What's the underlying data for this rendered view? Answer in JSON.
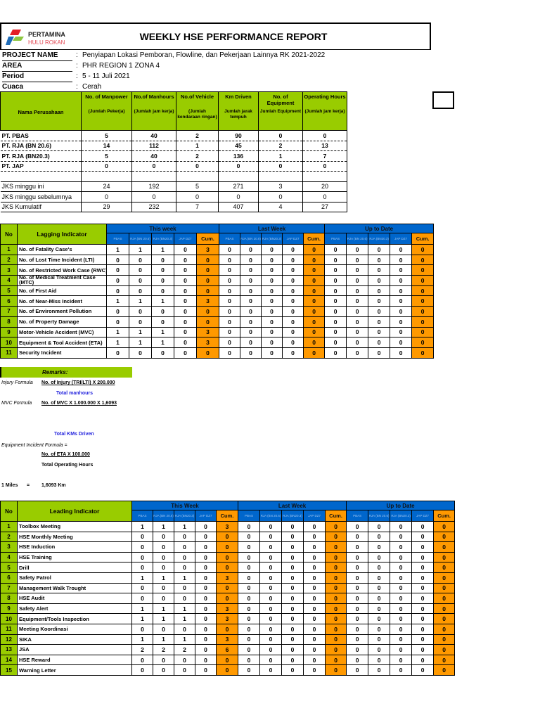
{
  "header": {
    "logo_name": "PERTAMINA",
    "logo_sub": "HULU ROKAN",
    "title": "WEEKLY HSE PERFORMANCE REPORT"
  },
  "info": [
    {
      "label": "PROJECT NAME",
      "value": "Penyiapan Lokasi Pemboran, Flowline, dan Pekerjaan Lainnya RK 2021-2022"
    },
    {
      "label": "AREA",
      "value": "PHR REGION 1 ZONA 4"
    },
    {
      "label": "Period",
      "value": "5 - 11 Juli 2021"
    },
    {
      "label": "Cuaca",
      "value": "Cerah"
    }
  ],
  "colon": ":",
  "summary": {
    "headers": [
      {
        "title": "Nama Perusahaan",
        "sub": ""
      },
      {
        "title": "No. of Manpower",
        "sub": "(Jumlah Pekerja)"
      },
      {
        "title": "No.of Manhours",
        "sub": "(Jumlah jam kerja)"
      },
      {
        "title": "No.of Vehicle",
        "sub": "(Jumlah kendaraan ringan)"
      },
      {
        "title": "Km Driven",
        "sub": "Jumlah jarak tempuh"
      },
      {
        "title": "No. of Equipment",
        "sub": "Jumlah Equipment"
      },
      {
        "title": "Operating Hours",
        "sub": "(Jumlah jam kerja)"
      }
    ],
    "rows": [
      [
        "PT. PBAS",
        "5",
        "40",
        "2",
        "90",
        "0",
        "0"
      ],
      [
        "PT. RJA (BN 20.6)",
        "14",
        "112",
        "1",
        "45",
        "2",
        "13"
      ],
      [
        "PT. RJA (BN20.3)",
        "5",
        "40",
        "2",
        "136",
        "1",
        "7"
      ],
      [
        "PT. JAP",
        "0",
        "0",
        "0",
        "0",
        "0",
        "0"
      ]
    ],
    "totals": [
      [
        "JKS minggu ini",
        "24",
        "192",
        "5",
        "271",
        "3",
        "20"
      ],
      [
        "JKS minggu sebelumnya",
        "0",
        "0",
        "0",
        "0",
        "0",
        "0"
      ],
      [
        "JKS Kumulatif",
        "29",
        "232",
        "7",
        "407",
        "4",
        "27"
      ]
    ]
  },
  "sub_columns": [
    "PBAS",
    "RJA (BN 20.6)",
    "RJA (BN20.3)",
    "JAP DZ7",
    "Cum."
  ],
  "lagging": {
    "no_label": "No",
    "title": "Lagging Indicator",
    "groups": [
      "This week",
      "Last Week",
      "Up to Date"
    ],
    "rows": [
      {
        "no": "1",
        "label": "No. of Fatality Case's",
        "v": [
          1,
          1,
          1,
          0,
          3,
          0,
          0,
          0,
          0,
          0,
          0,
          0,
          0,
          0,
          0
        ]
      },
      {
        "no": "2",
        "label": "No. of Lost Time Incident (LTI)",
        "v": [
          0,
          0,
          0,
          0,
          0,
          0,
          0,
          0,
          0,
          0,
          0,
          0,
          0,
          0,
          0
        ]
      },
      {
        "no": "3",
        "label": "No. of Restricted Work Case (RWC)",
        "v": [
          0,
          0,
          0,
          0,
          0,
          0,
          0,
          0,
          0,
          0,
          0,
          0,
          0,
          0,
          0
        ]
      },
      {
        "no": "4",
        "label": "No. of Medical Treatment Case (MTC)",
        "v": [
          0,
          0,
          0,
          0,
          0,
          0,
          0,
          0,
          0,
          0,
          0,
          0,
          0,
          0,
          0
        ]
      },
      {
        "no": "5",
        "label": "No. of First Aid",
        "v": [
          0,
          0,
          0,
          0,
          0,
          0,
          0,
          0,
          0,
          0,
          0,
          0,
          0,
          0,
          0
        ]
      },
      {
        "no": "6",
        "label": "No. of Near-Miss Incident",
        "v": [
          1,
          1,
          1,
          0,
          3,
          0,
          0,
          0,
          0,
          0,
          0,
          0,
          0,
          0,
          0
        ]
      },
      {
        "no": "7",
        "label": "No. of Environment Pollution",
        "v": [
          0,
          0,
          0,
          0,
          0,
          0,
          0,
          0,
          0,
          0,
          0,
          0,
          0,
          0,
          0
        ]
      },
      {
        "no": "8",
        "label": "No. of Property Damage",
        "v": [
          0,
          0,
          0,
          0,
          0,
          0,
          0,
          0,
          0,
          0,
          0,
          0,
          0,
          0,
          0
        ]
      },
      {
        "no": "9",
        "label": "Motor-Vehicle Accident (MVC)",
        "v": [
          1,
          1,
          1,
          0,
          3,
          0,
          0,
          0,
          0,
          0,
          0,
          0,
          0,
          0,
          0
        ]
      },
      {
        "no": "10",
        "label": "Equipment & Tool Accident (ETA)",
        "v": [
          1,
          1,
          1,
          0,
          3,
          0,
          0,
          0,
          0,
          0,
          0,
          0,
          0,
          0,
          0
        ]
      },
      {
        "no": "11",
        "label": "Security Incident",
        "v": [
          0,
          0,
          0,
          0,
          0,
          0,
          0,
          0,
          0,
          0,
          0,
          0,
          0,
          0,
          0
        ]
      }
    ]
  },
  "remarks": {
    "title": "Remarks:",
    "injury_label": "Injury Formula",
    "injury_num": "No. of Injury (TRI/LTI) X 200.000",
    "injury_den": "Total manhours",
    "mvc_label": "MVC Formula",
    "mvc_num": "No. of MVC X 1.000.000 X 1,6093",
    "mvc_den": "Total KMs Driven",
    "eta_label": "Equipment Incident Formula =",
    "eta_num": "No. of ETA X 100.000",
    "eta_den": "Total Operating Hours",
    "miles_label": "1 Miles",
    "miles_eq": "=",
    "miles_value": "1,6093 Km"
  },
  "leading": {
    "no_label": "No",
    "title": "Leading Indicator",
    "groups": [
      "This Week",
      "Last Week",
      "Up to Date"
    ],
    "rows": [
      {
        "no": "1",
        "label": "Toolbox Meeting",
        "v": [
          1,
          1,
          1,
          0,
          3,
          0,
          0,
          0,
          0,
          0,
          0,
          0,
          0,
          0,
          0
        ]
      },
      {
        "no": "2",
        "label": "HSE Monthly Meeting",
        "v": [
          0,
          0,
          0,
          0,
          0,
          0,
          0,
          0,
          0,
          0,
          0,
          0,
          0,
          0,
          0
        ]
      },
      {
        "no": "3",
        "label": "HSE Induction",
        "v": [
          0,
          0,
          0,
          0,
          0,
          0,
          0,
          0,
          0,
          0,
          0,
          0,
          0,
          0,
          0
        ]
      },
      {
        "no": "4",
        "label": "HSE Training",
        "v": [
          0,
          0,
          0,
          0,
          0,
          0,
          0,
          0,
          0,
          0,
          0,
          0,
          0,
          0,
          0
        ]
      },
      {
        "no": "5",
        "label": "Drill",
        "v": [
          0,
          0,
          0,
          0,
          0,
          0,
          0,
          0,
          0,
          0,
          0,
          0,
          0,
          0,
          0
        ]
      },
      {
        "no": "6",
        "label": "Safety Patrol",
        "v": [
          1,
          1,
          1,
          0,
          3,
          0,
          0,
          0,
          0,
          0,
          0,
          0,
          0,
          0,
          0
        ]
      },
      {
        "no": "7",
        "label": "Management Walk Trought",
        "v": [
          0,
          0,
          0,
          0,
          0,
          0,
          0,
          0,
          0,
          0,
          0,
          0,
          0,
          0,
          0
        ]
      },
      {
        "no": "8",
        "label": "HSE Audit",
        "v": [
          0,
          0,
          0,
          0,
          0,
          0,
          0,
          0,
          0,
          0,
          0,
          0,
          0,
          0,
          0
        ]
      },
      {
        "no": "9",
        "label": "Safety Alert",
        "v": [
          1,
          1,
          1,
          0,
          3,
          0,
          0,
          0,
          0,
          0,
          0,
          0,
          0,
          0,
          0
        ]
      },
      {
        "no": "10",
        "label": "Equipment/Tools Inspection",
        "v": [
          1,
          1,
          1,
          0,
          3,
          0,
          0,
          0,
          0,
          0,
          0,
          0,
          0,
          0,
          0
        ]
      },
      {
        "no": "11",
        "label": "Meeting Koordinasi",
        "v": [
          0,
          0,
          0,
          0,
          0,
          0,
          0,
          0,
          0,
          0,
          0,
          0,
          0,
          0,
          0
        ]
      },
      {
        "no": "12",
        "label": "SIKA",
        "v": [
          1,
          1,
          1,
          0,
          3,
          0,
          0,
          0,
          0,
          0,
          0,
          0,
          0,
          0,
          0
        ]
      },
      {
        "no": "13",
        "label": "JSA",
        "v": [
          2,
          2,
          2,
          0,
          6,
          0,
          0,
          0,
          0,
          0,
          0,
          0,
          0,
          0,
          0
        ]
      },
      {
        "no": "14",
        "label": "HSE Reward",
        "v": [
          0,
          0,
          0,
          0,
          0,
          0,
          0,
          0,
          0,
          0,
          0,
          0,
          0,
          0,
          0
        ]
      },
      {
        "no": "15",
        "label": "Warning Letter",
        "v": [
          0,
          0,
          0,
          0,
          0,
          0,
          0,
          0,
          0,
          0,
          0,
          0,
          0,
          0,
          0
        ]
      }
    ]
  },
  "colors": {
    "green": "#99cc00",
    "blue": "#0066cc",
    "orange": "#ff9900"
  }
}
